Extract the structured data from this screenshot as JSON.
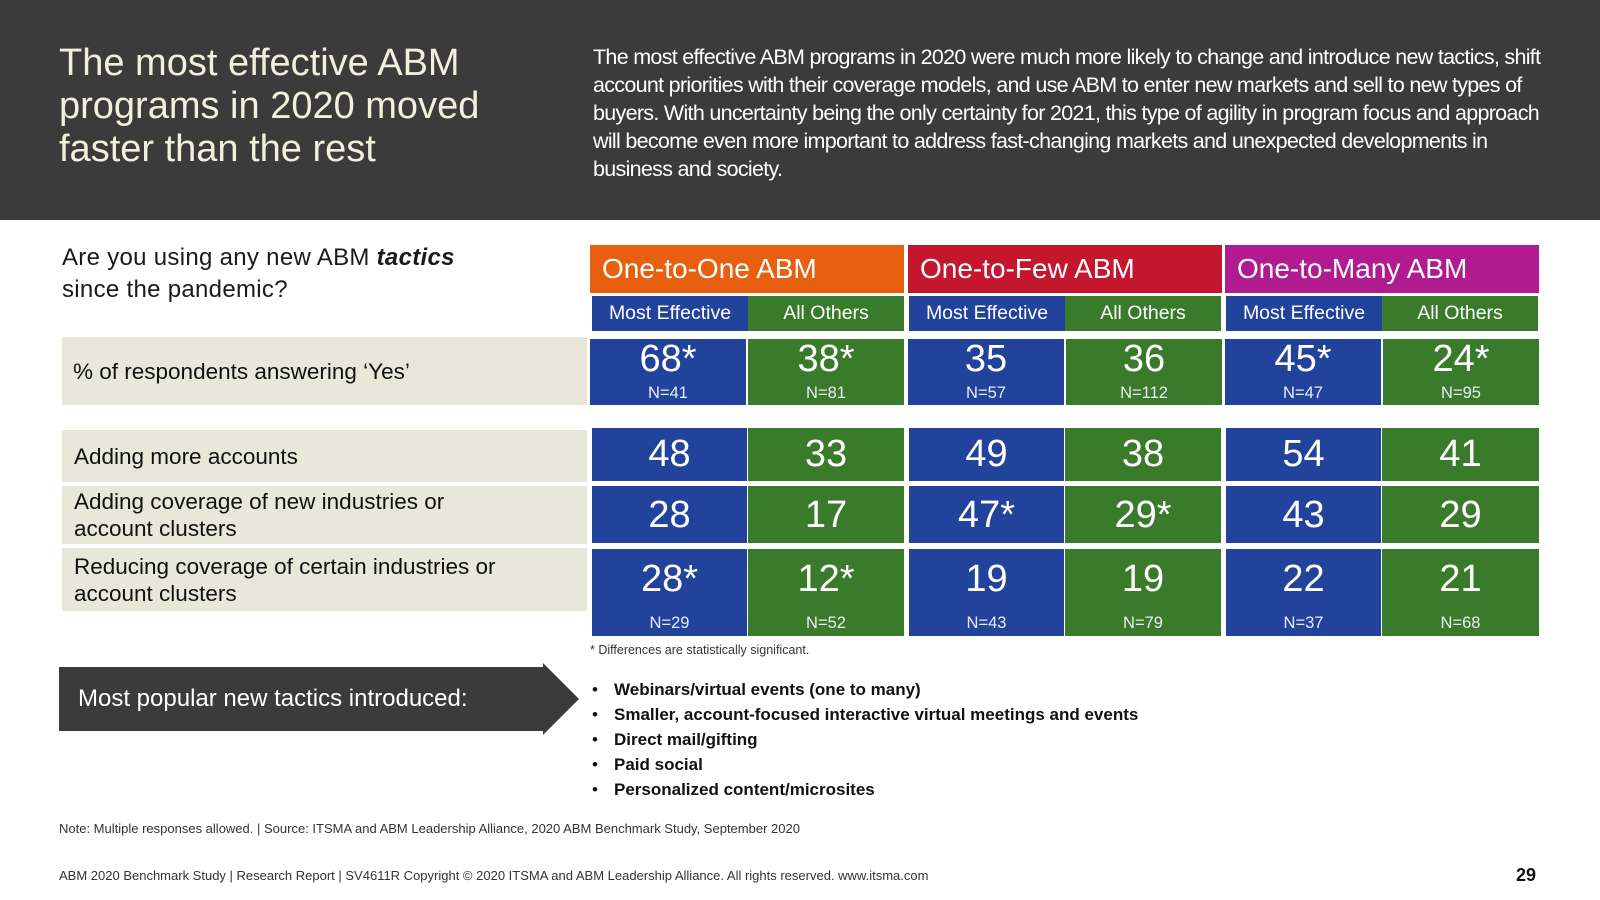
{
  "title": "The most effective ABM programs in 2020 moved faster than the rest",
  "intro": "The most effective ABM programs in 2020 were much more likely to change and introduce new tactics, shift account priorities with their coverage models, and use ABM to enter new markets and sell to new types of buyers. With uncertainty being the only certainty for 2021, this type of agility in program focus and approach will become even more important to address fast-changing markets and unexpected developments in business and society.",
  "question": {
    "prefix": "Are you using any new ABM",
    "emphasis": "tactics",
    "suffix": "since the pandemic?"
  },
  "colors": {
    "orange": "#e8600f",
    "red": "#c4172e",
    "magenta": "#b01c8f",
    "blue": "#22439c",
    "green": "#3a7a2b",
    "header_bg": "#3b3b3b",
    "label_bg": "#e8e8da"
  },
  "groups": [
    {
      "label": "One-to-One ABM",
      "sub": [
        "Most Effective",
        "All Others"
      ]
    },
    {
      "label": "One-to-Few ABM",
      "sub": [
        "Most Effective",
        "All Others"
      ]
    },
    {
      "label": "One-to-Many ABM",
      "sub": [
        "Most Effective",
        "All Others"
      ]
    }
  ],
  "yes_row": {
    "label": "% of respondents answering ‘Yes’",
    "values": [
      "68*",
      "38*",
      "35",
      "36",
      "45*",
      "24*"
    ],
    "n": [
      "N=41",
      "N=81",
      "N=57",
      "N=112",
      "N=47",
      "N=95"
    ]
  },
  "detail_rows": [
    {
      "label": "Adding more accounts",
      "values": [
        "48",
        "33",
        "49",
        "38",
        "54",
        "41"
      ]
    },
    {
      "label": "Adding coverage of new industries or account clusters",
      "values": [
        "28",
        "17",
        "47*",
        "29*",
        "43",
        "29"
      ]
    },
    {
      "label": "Reducing coverage of certain industries or account clusters",
      "values": [
        "28*",
        "12*",
        "19",
        "19",
        "22",
        "21"
      ]
    }
  ],
  "detail_n": [
    "N=29",
    "N=52",
    "N=43",
    "N=79",
    "N=37",
    "N=68"
  ],
  "footnote": "* Differences are statistically significant.",
  "popular_label": "Most popular new tactics introduced:",
  "bullets": [
    "Webinars/virtual events (one to many)",
    "Smaller, account-focused interactive virtual meetings and events",
    "Direct mail/gifting",
    "Paid social",
    "Personalized content/microsites"
  ],
  "note": "Note: Multiple responses allowed. | Source: ITSMA and ABM Leadership Alliance, 2020 ABM Benchmark Study, September 2020",
  "footer": "ABM 2020 Benchmark Study | Research Report | SV4611R Copyright © 2020 ITSMA and ABM Leadership Alliance. All rights reserved. www.itsma.com",
  "page_number": "29"
}
